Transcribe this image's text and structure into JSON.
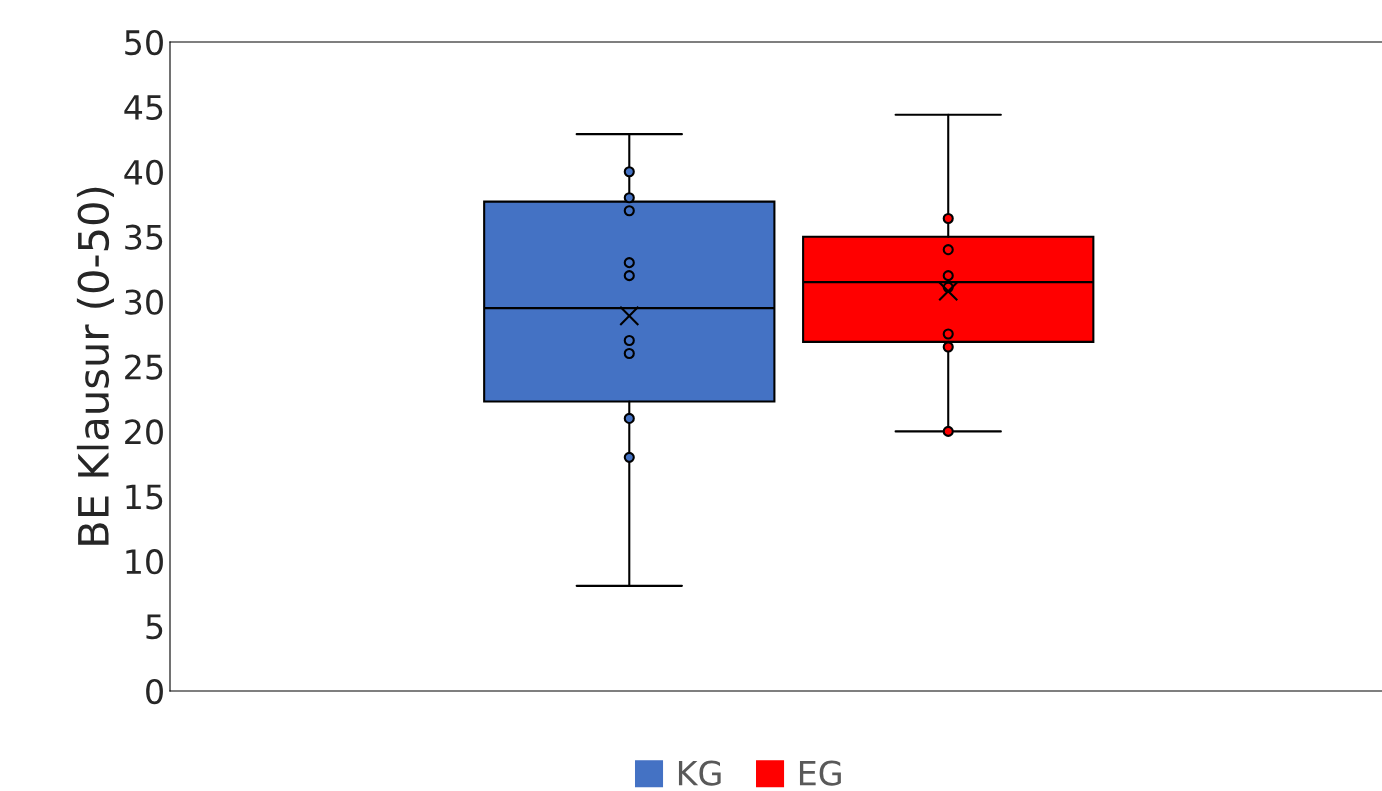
{
  "chart_data": {
    "type": "box",
    "ylabel": "BE Klausur (0-50)",
    "categories": [
      null,
      null
    ],
    "tick_labels": "y",
    "ylim": [
      0,
      50
    ],
    "yticks": [
      0,
      5,
      10,
      15,
      20,
      25,
      30,
      35,
      40,
      45,
      50
    ],
    "grid": false,
    "legend": "bottom",
    "series": [
      {
        "name": "KG",
        "color": "#4472c4",
        "boxes": [
          {
            "low": 8.1,
            "q1": 22.3,
            "median": 29.5,
            "q3": 37.7,
            "high": 42.9,
            "mean": 28.9,
            "outliers": [
              40,
              38,
              37,
              33,
              32,
              27,
              26,
              21,
              18
            ]
          },
          null
        ]
      },
      {
        "name": "EG",
        "color": "#ff0000",
        "boxes": [
          null,
          {
            "low": 20.0,
            "q1": 26.9,
            "median": 31.5,
            "q3": 35.0,
            "high": 44.4,
            "mean": 30.8,
            "outliers": [
              36.4,
              34,
              32,
              31.1,
              27.5,
              26.5,
              20
            ]
          }
        ]
      }
    ]
  }
}
